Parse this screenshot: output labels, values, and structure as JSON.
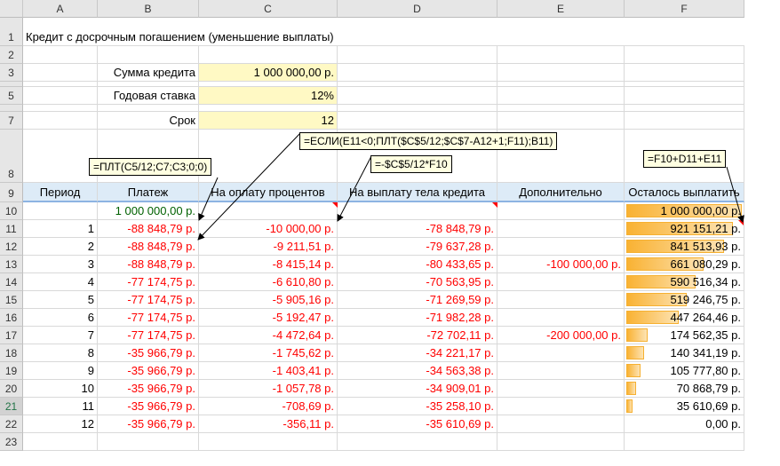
{
  "columns": [
    "A",
    "B",
    "C",
    "D",
    "E",
    "F"
  ],
  "title": "Кредит с досрочным погашением (уменьшение выплаты)",
  "params": [
    {
      "row": "3",
      "label": "Сумма кредита",
      "value": "1 000 000,00 р."
    },
    {
      "row": "5",
      "label": "Годовая ставка",
      "value": "12%"
    },
    {
      "row": "7",
      "label": "Срок",
      "value": "12"
    }
  ],
  "row_numbers": [
    "1",
    "2",
    "3",
    "5",
    "7",
    "8",
    "9",
    "10",
    "11",
    "12",
    "13",
    "14",
    "15",
    "16",
    "17",
    "18",
    "19",
    "20",
    "21",
    "22",
    "23"
  ],
  "notes": {
    "pmt": "=ПЛТ(C5/12;C7;C3;0;0)",
    "if": "=ЕСЛИ(E11<0;ПЛТ($C$5/12;$C$7-A12+1;F11);B11)",
    "interest": "=-$C$5/12*F10",
    "balance": "=F10+D11+E11"
  },
  "table": {
    "headers": [
      "Период",
      "Платеж",
      "На оплату процентов",
      "На выплату тела кредита",
      "Дополнительно",
      "Осталось выплатить"
    ],
    "start": {
      "payment": "1 000 000,00 р.",
      "balance": "1 000 000,00 р.",
      "balance_value": 1000000
    },
    "rows": [
      [
        "1",
        "-88 848,79 р.",
        "-10 000,00 р.",
        "-78 848,79 р.",
        "",
        "921 151,21 р.",
        921151.21
      ],
      [
        "2",
        "-88 848,79 р.",
        "-9 211,51 р.",
        "-79 637,28 р.",
        "",
        "841 513,93 р.",
        841513.93
      ],
      [
        "3",
        "-88 848,79 р.",
        "-8 415,14 р.",
        "-80 433,65 р.",
        "-100 000,00 р.",
        "661 080,29 р.",
        661080.29
      ],
      [
        "4",
        "-77 174,75 р.",
        "-6 610,80 р.",
        "-70 563,95 р.",
        "",
        "590 516,34 р.",
        590516.34
      ],
      [
        "5",
        "-77 174,75 р.",
        "-5 905,16 р.",
        "-71 269,59 р.",
        "",
        "519 246,75 р.",
        519246.75
      ],
      [
        "6",
        "-77 174,75 р.",
        "-5 192,47 р.",
        "-71 982,28 р.",
        "",
        "447 264,46 р.",
        447264.46
      ],
      [
        "7",
        "-77 174,75 р.",
        "-4 472,64 р.",
        "-72 702,11 р.",
        "-200 000,00 р.",
        "174 562,35 р.",
        174562.35
      ],
      [
        "8",
        "-35 966,79 р.",
        "-1 745,62 р.",
        "-34 221,17 р.",
        "",
        "140 341,19 р.",
        140341.19
      ],
      [
        "9",
        "-35 966,79 р.",
        "-1 403,41 р.",
        "-34 563,38 р.",
        "",
        "105 777,80 р.",
        105777.8
      ],
      [
        "10",
        "-35 966,79 р.",
        "-1 057,78 р.",
        "-34 909,01 р.",
        "",
        "70 868,79 р.",
        70868.79
      ],
      [
        "11",
        "-35 966,79 р.",
        "-708,69 р.",
        "-35 258,10 р.",
        "",
        "35 610,69 р.",
        35610.69
      ],
      [
        "12",
        "-35 966,79 р.",
        "-356,11 р.",
        "-35 610,69 р.",
        "",
        "0,00 р.",
        0
      ]
    ]
  },
  "colors": {
    "title": "#c00000",
    "negative": "#ff0000",
    "input_fill": "#fff9c4",
    "header_fill": "#ddebf7",
    "databar": "#f9b233"
  }
}
